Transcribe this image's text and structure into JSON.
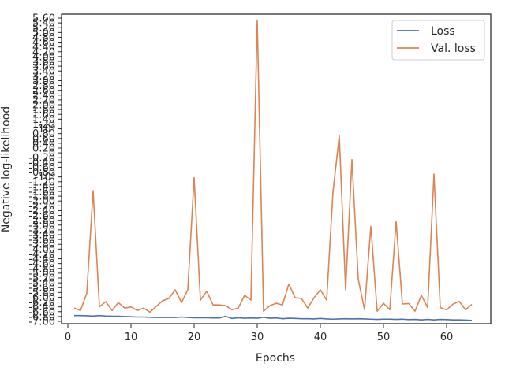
{
  "chart_data": {
    "type": "line",
    "xlabel": "Epochs",
    "ylabel": "Negative log-likelihood",
    "xlim": [
      -1,
      67
    ],
    "ylim": [
      -7.0,
      5.6
    ],
    "x_ticks": [
      0,
      10,
      20,
      30,
      40,
      50,
      60
    ],
    "y_ticks": [
      -7.0,
      -6.8,
      -6.6,
      -6.4,
      -6.2,
      -6.0,
      -5.8,
      -5.6,
      -5.4,
      -5.2,
      -5.0,
      -4.8,
      -4.6,
      -4.4,
      -4.2,
      -4.0,
      -3.8,
      -3.6,
      -3.4,
      -3.2,
      -3.0,
      -2.8,
      -2.6,
      -2.4,
      -2.2,
      -2.0,
      -1.8,
      -1.6,
      -1.4,
      -1.2,
      -1.0,
      -0.8,
      -0.6,
      -0.4,
      -0.2,
      0.0,
      0.2,
      0.4,
      0.6,
      0.8,
      1.0,
      1.2,
      1.4,
      1.6,
      1.8,
      2.0,
      2.2,
      2.4,
      2.6,
      2.8,
      3.0,
      3.2,
      3.4,
      3.6,
      3.8,
      4.0,
      4.2,
      4.4,
      4.6,
      4.8,
      5.0,
      5.2,
      5.4,
      5.6
    ],
    "y_tick_labels": [
      "-7.00",
      "-6.80",
      "-6.60",
      "-6.40",
      "-6.20",
      "-6.00",
      "-5.80",
      "-5.60",
      "-5.40",
      "-5.20",
      "-5.00",
      "-4.80",
      "-4.60",
      "-4.40",
      "-4.20",
      "-4.00",
      "-3.80",
      "-3.60",
      "-3.40",
      "-3.20",
      "-3.00",
      "-2.80",
      "-2.60",
      "-2.40",
      "-2.20",
      "-2.00",
      "-1.80",
      "-1.60",
      "-1.40",
      "-1.20",
      "-10⁰",
      "-0.80",
      "-0.60",
      "-0.40",
      "-0.20",
      "0",
      "0.20",
      "0.40",
      "0.60",
      "0.80",
      "10⁰",
      "1.20",
      "1.40",
      "1.60",
      "1.80",
      "2.00",
      "2.20",
      "2.40",
      "2.60",
      "2.80",
      "3.00",
      "3.20",
      "3.40",
      "3.60",
      "3.80",
      "4.00",
      "4.20",
      "4.40",
      "4.60",
      "4.80",
      "5.00",
      "5.20",
      "5.40",
      "5.60"
    ],
    "grid": false,
    "legend": "top-right",
    "series": [
      {
        "name": "Loss",
        "color": "#4c72b0",
        "x": [
          1,
          2,
          3,
          4,
          5,
          6,
          7,
          8,
          9,
          10,
          11,
          12,
          13,
          14,
          15,
          16,
          17,
          18,
          19,
          20,
          21,
          22,
          23,
          24,
          25,
          26,
          27,
          28,
          29,
          30,
          31,
          32,
          33,
          34,
          35,
          36,
          37,
          38,
          39,
          40,
          41,
          42,
          43,
          44,
          45,
          46,
          47,
          48,
          49,
          50,
          51,
          52,
          53,
          54,
          55,
          56,
          57,
          58,
          59,
          60,
          61,
          62,
          63,
          64
        ],
        "values": [
          -6.76,
          -6.76,
          -6.77,
          -6.78,
          -6.76,
          -6.78,
          -6.79,
          -6.79,
          -6.8,
          -6.81,
          -6.82,
          -6.82,
          -6.83,
          -6.84,
          -6.84,
          -6.84,
          -6.84,
          -6.82,
          -6.84,
          -6.85,
          -6.85,
          -6.85,
          -6.86,
          -6.86,
          -6.79,
          -6.88,
          -6.85,
          -6.87,
          -6.86,
          -6.87,
          -6.83,
          -6.87,
          -6.86,
          -6.89,
          -6.87,
          -6.88,
          -6.89,
          -6.89,
          -6.9,
          -6.88,
          -6.9,
          -6.91,
          -6.9,
          -6.89,
          -6.9,
          -6.89,
          -6.9,
          -6.91,
          -6.92,
          -6.91,
          -6.91,
          -6.92,
          -6.91,
          -6.93,
          -6.92,
          -6.94,
          -6.92,
          -6.94,
          -6.92,
          -6.93,
          -6.94,
          -6.94,
          -6.95,
          -6.96
        ]
      },
      {
        "name": "Val. loss",
        "color": "#dd8452",
        "x": [
          1,
          2,
          3,
          4,
          5,
          6,
          7,
          8,
          9,
          10,
          11,
          12,
          13,
          14,
          15,
          16,
          17,
          18,
          19,
          20,
          21,
          22,
          23,
          24,
          25,
          26,
          27,
          28,
          29,
          30,
          31,
          32,
          33,
          34,
          35,
          36,
          37,
          38,
          39,
          40,
          41,
          42,
          43,
          44,
          45,
          46,
          47,
          48,
          49,
          50,
          51,
          52,
          53,
          54,
          55,
          56,
          57,
          58,
          59,
          60,
          61,
          62,
          63,
          64
        ],
        "values": [
          -6.45,
          -6.55,
          -5.83,
          -1.57,
          -6.4,
          -6.18,
          -6.55,
          -6.22,
          -6.45,
          -6.4,
          -6.55,
          -6.45,
          -6.62,
          -6.38,
          -6.15,
          -6.05,
          -5.69,
          -6.22,
          -5.69,
          -1.03,
          -6.12,
          -5.75,
          -6.32,
          -6.32,
          -6.35,
          -6.52,
          -6.45,
          -5.92,
          -6.12,
          5.52,
          -6.58,
          -6.35,
          -6.25,
          -6.32,
          -5.45,
          -6.02,
          -6.05,
          -6.45,
          -6.02,
          -5.69,
          -6.12,
          -1.62,
          0.7,
          -5.69,
          -0.28,
          -5.25,
          -6.52,
          -3.05,
          -6.58,
          -6.25,
          -6.52,
          -2.85,
          -6.28,
          -6.26,
          -6.58,
          -5.92,
          -6.43,
          -0.88,
          -6.43,
          -6.52,
          -6.29,
          -6.17,
          -6.52,
          -6.3
        ]
      }
    ]
  }
}
